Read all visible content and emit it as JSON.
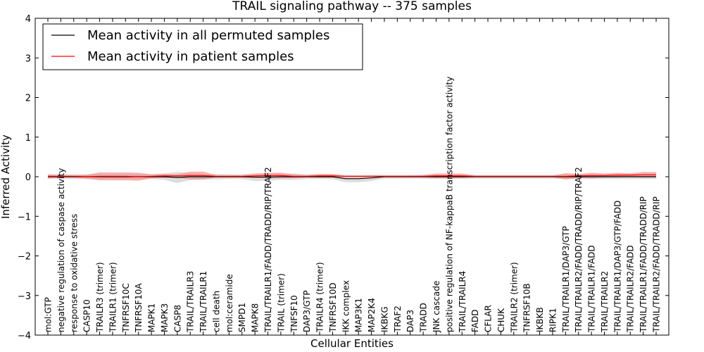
{
  "chart_data": {
    "type": "line",
    "title": "TRAIL signaling pathway -- 375 samples",
    "xlabel": "Cellular Entities",
    "ylabel": "Inferred Activity",
    "ylim": [
      -4,
      4
    ],
    "yticks": [
      "4",
      "3",
      "2",
      "1",
      "0",
      "−1",
      "−2",
      "−3",
      "−4"
    ],
    "ytick_values": [
      4,
      3,
      2,
      1,
      0,
      -1,
      -2,
      -3,
      -4
    ],
    "grid": false,
    "legend_position": "top-left",
    "categories": [
      "mol:GTP",
      "negative regulation of caspase activity",
      "response to oxidative stress",
      "CASP10",
      "TRAILR3 (trimer)",
      "TRAILR1 (trimer)",
      "TNFRSF10C",
      "TNFRSF10A",
      "MAPK1",
      "MAPK3",
      "CASP8",
      "TRAIL/TRAILR3",
      "TRAIL/TRAILR1",
      "cell death",
      "mol:ceramide",
      "SMPD1",
      "MAPK8",
      "TRAIL/TRAILR1/FADD/TRADD/RIP/TRAF2",
      "TRAIL (trimer)",
      "TNFSF10",
      "DAP3/GTP",
      "TRAILR4 (trimer)",
      "TNFRSF10D",
      "IKK complex",
      "MAP3K1",
      "MAP2K4",
      "IKBKG",
      "TRAF2",
      "DAP3",
      "TRADD",
      "JNK cascade",
      "positive regulation of NF-kappaB transcription factor activity",
      "TRAIL/TRAILR4",
      "FADD",
      "CFLAR",
      "CHUK",
      "TRAILR2 (trimer)",
      "TNFRSF10B",
      "IKBKB",
      "RIPK1",
      "TRAIL/TRAILR1/DAP3/GTP",
      "TRAIL/TRAILR2/FADD/TRADD/RIP/TRAF2",
      "TRAIL/TRAILR1/FADD",
      "TRAIL/TRAILR2",
      "TRAIL/TRAILR1/DAP3/GTP/FADD",
      "TRAIL/TRAILR2/FADD",
      "TRAIL/TRAILR1/FADD/TRADD/RIP",
      "TRAIL/TRAILR2/FADD/TRADD/RIP"
    ],
    "series": [
      {
        "name": "Mean activity in all permuted samples",
        "color": "#000000",
        "band_color": "#bbbbbb",
        "values": [
          0,
          0,
          0,
          0,
          0,
          0,
          0,
          0,
          0,
          0,
          -0.02,
          0,
          0,
          0,
          0,
          0,
          -0.01,
          -0.01,
          0,
          0,
          0,
          0,
          0,
          -0.05,
          -0.05,
          -0.03,
          0,
          0,
          0,
          0,
          0,
          0,
          0,
          0,
          0,
          0,
          0,
          0,
          0,
          0,
          0,
          0,
          0,
          0,
          0,
          0,
          0,
          0
        ],
        "band_halfwidth": [
          0.06,
          0.06,
          0.06,
          0.06,
          0.06,
          0.06,
          0.06,
          0.06,
          0.06,
          0.08,
          0.14,
          0.08,
          0.07,
          0.07,
          0.06,
          0.06,
          0.1,
          0.09,
          0.08,
          0.08,
          0.06,
          0.06,
          0.06,
          0.09,
          0.09,
          0.08,
          0.05,
          0.05,
          0.05,
          0.05,
          0.05,
          0.05,
          0.05,
          0.05,
          0.05,
          0.05,
          0.05,
          0.05,
          0.05,
          0.05,
          0.06,
          0.06,
          0.06,
          0.06,
          0.06,
          0.06,
          0.06,
          0.06
        ]
      },
      {
        "name": "Mean activity in patient samples",
        "color": "#ff0000",
        "band_color": "#f08080",
        "values": [
          0.01,
          0.01,
          0.01,
          0,
          0.01,
          0.01,
          0.01,
          0,
          0.01,
          0.02,
          0.02,
          0.03,
          0.03,
          0.01,
          0.01,
          0.01,
          0.02,
          0.03,
          0.03,
          0.01,
          0.01,
          0.02,
          0.02,
          0.01,
          0.01,
          0.01,
          0.01,
          0.01,
          0.01,
          0.01,
          0.02,
          0.02,
          0.02,
          0.01,
          0.01,
          0.01,
          0.01,
          0.01,
          0.01,
          0.01,
          0.01,
          0.02,
          0.03,
          0.03,
          0.04,
          0.04,
          0.05,
          0.05
        ],
        "band_halfwidth": [
          0.05,
          0.03,
          0.03,
          0.05,
          0.1,
          0.1,
          0.1,
          0.1,
          0.05,
          0.05,
          0.04,
          0.1,
          0.1,
          0.03,
          0.03,
          0.03,
          0.05,
          0.07,
          0.07,
          0.05,
          0.03,
          0.05,
          0.05,
          0.02,
          0.02,
          0.02,
          0.02,
          0.02,
          0.02,
          0.03,
          0.06,
          0.06,
          0.06,
          0.02,
          0.02,
          0.02,
          0.02,
          0.02,
          0.02,
          0.02,
          0.08,
          0.05,
          0.07,
          0.05,
          0.06,
          0.05,
          0.07,
          0.07
        ]
      }
    ]
  }
}
